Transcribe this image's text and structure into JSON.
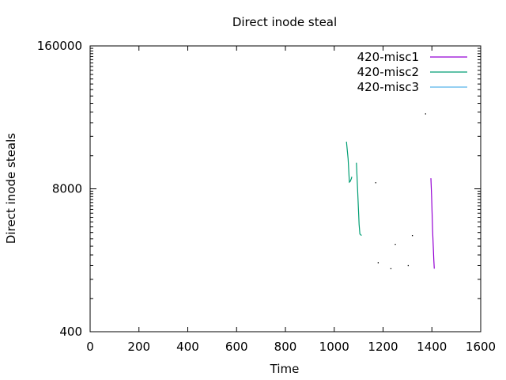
{
  "chart_data": {
    "type": "line",
    "title": "Direct inode steal",
    "xlabel": "Time",
    "ylabel": "Direct inode steals",
    "xlim": [
      0,
      1600
    ],
    "ylim": [
      400,
      160000
    ],
    "yscale": "log",
    "xticks": [
      0,
      200,
      400,
      600,
      800,
      1000,
      1200,
      1400,
      1600
    ],
    "xtick_labels": [
      "0",
      "200",
      "400",
      "600",
      "800",
      "1000",
      "1200",
      "1400",
      "1600"
    ],
    "yticks": [
      400,
      8000,
      160000
    ],
    "ytick_labels": [
      "400",
      "8000",
      "160000"
    ],
    "grid": false,
    "legend_position": "top-right",
    "series": [
      {
        "name": "420-misc1",
        "color": "#9400d3",
        "segments": [
          [
            [
              1396,
              10000
            ],
            [
              1399,
              6800
            ],
            [
              1403,
              3300
            ],
            [
              1408,
              1800
            ],
            [
              1410,
              1500
            ]
          ]
        ],
        "dots": [
          [
            1374,
            38500
          ]
        ]
      },
      {
        "name": "420-misc2",
        "color": "#009e73",
        "segments": [
          [
            [
              1050,
              21500
            ],
            [
              1057,
              15000
            ],
            [
              1062,
              9200
            ],
            [
              1065,
              9300
            ],
            [
              1070,
              9900
            ],
            [
              1072,
              10300
            ]
          ],
          [
            [
              1091,
              13800
            ],
            [
              1096,
              7600
            ],
            [
              1102,
              3800
            ],
            [
              1105,
              3100
            ],
            [
              1112,
              3000
            ]
          ]
        ],
        "dots": [
          [
            1170,
            9100
          ],
          [
            1180,
            1700
          ],
          [
            1232,
            1500
          ],
          [
            1250,
            2500
          ],
          [
            1303,
            1600
          ],
          [
            1320,
            3000
          ]
        ]
      },
      {
        "name": "420-misc3",
        "color": "#56b4e9",
        "segments": [],
        "dots": []
      }
    ]
  }
}
